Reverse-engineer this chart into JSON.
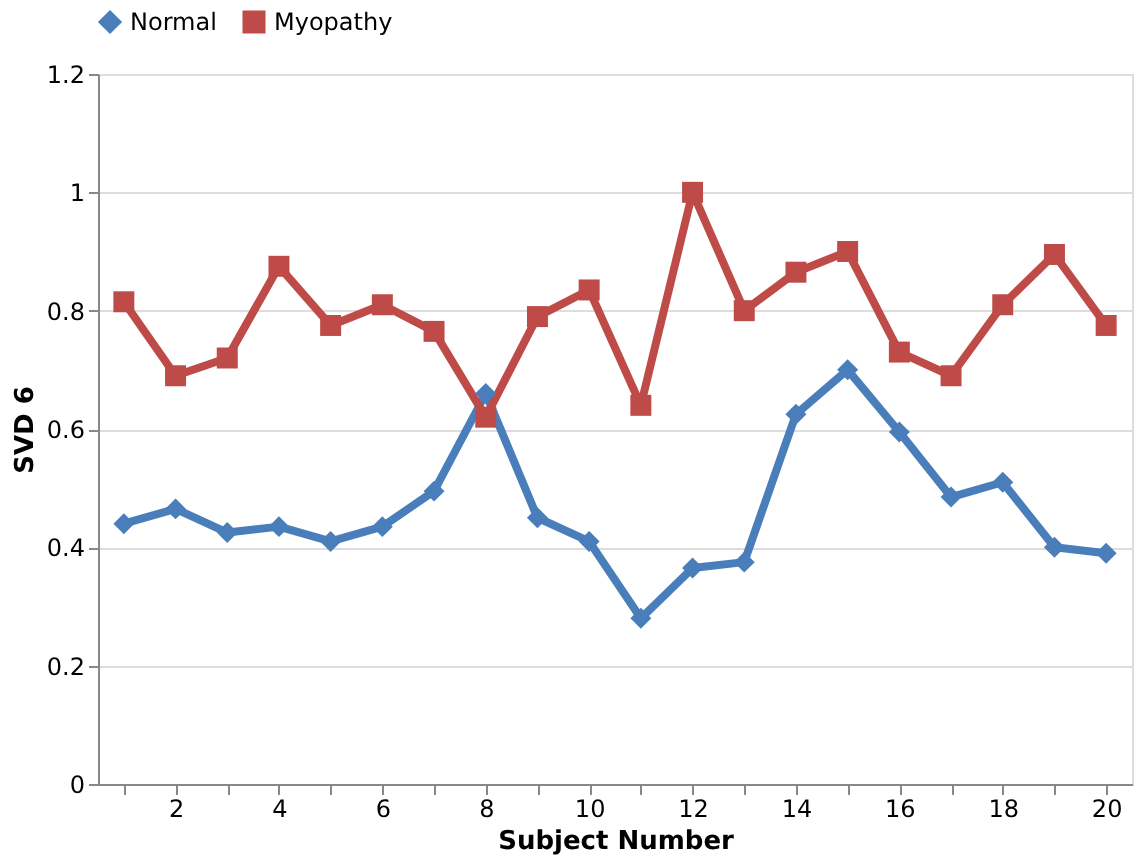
{
  "chart_data": {
    "type": "line",
    "xlabel": "Subject Number",
    "ylabel": "SVD 6",
    "categories": [
      null,
      "2",
      null,
      "4",
      null,
      "6",
      null,
      "8",
      null,
      "10",
      null,
      "12",
      null,
      "14",
      null,
      "16",
      null,
      "18",
      null,
      "20"
    ],
    "series": [
      {
        "name": "Normal",
        "color": "#4a7ebb",
        "marker": "diamond",
        "values": [
          0.44,
          0.465,
          0.425,
          0.435,
          0.41,
          0.435,
          0.495,
          0.66,
          0.45,
          0.41,
          0.28,
          0.365,
          0.375,
          0.625,
          0.7,
          0.595,
          0.485,
          0.51,
          0.4,
          0.39
        ]
      },
      {
        "name": "Myopathy",
        "color": "#be4b48",
        "marker": "square",
        "values": [
          0.815,
          0.69,
          0.72,
          0.875,
          0.775,
          0.81,
          0.765,
          0.62,
          0.79,
          0.835,
          0.64,
          1.0,
          0.8,
          0.865,
          0.9,
          0.73,
          0.69,
          0.81,
          0.895,
          0.775
        ]
      }
    ],
    "ylim": [
      0,
      1.2
    ],
    "yticks": [
      0,
      0.2,
      0.4,
      0.6,
      0.8,
      1,
      1.2
    ],
    "grid": "y",
    "legend": "top left",
    "line_style": "solid"
  }
}
